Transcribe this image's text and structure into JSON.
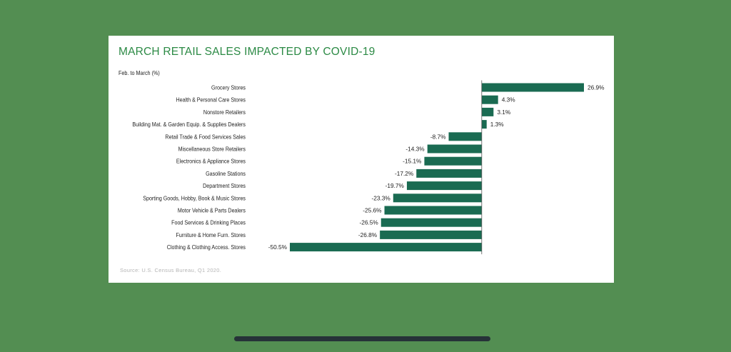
{
  "chart_data": {
    "type": "bar",
    "orientation": "horizontal",
    "title": "MARCH RETAIL SALES IMPACTED BY COVID-19",
    "subtitle": "Feb. to March (%)",
    "source": "Source: U.S. Census Bureau, Q1 2020.",
    "categories": [
      "Grocery Stores",
      "Health & Personal Care Stores",
      "Nonstore Retailers",
      "Building Mat. & Garden Equip. & Supplies Dealers",
      "Retail Trade & Food Services Sales",
      "Miscellaneous Store Retailers",
      "Electronics & Appliance Stores",
      "Gasoline Stations",
      "Department Stores",
      "Sporting Goods, Hobby, Book & Music Stores",
      "Motor Vehicle & Parts Dealers",
      "Food Services & Drinking Places",
      "Furniture & Home Furn. Stores",
      "Clothing & Clothing Access. Stores"
    ],
    "values": [
      26.9,
      4.3,
      3.1,
      1.3,
      -8.7,
      -14.3,
      -15.1,
      -17.2,
      -19.7,
      -23.3,
      -25.6,
      -26.5,
      -26.8,
      -50.5
    ],
    "value_labels": [
      "26.9%",
      "4.3%",
      "3.1%",
      "1.3%",
      "-8.7%",
      "-14.3%",
      "-15.1%",
      "-17.2%",
      "-19.7%",
      "-23.3%",
      "-25.6%",
      "-26.5%",
      "-26.8%",
      "-50.5%"
    ],
    "xlim": [
      -50.5,
      26.9
    ],
    "grid": false,
    "legend": "none",
    "bar_color": "#1a6b52",
    "title_color": "#2c8a45"
  },
  "colors": {
    "background": "#538e52",
    "card": "#ffffff",
    "axis": "#555555"
  }
}
